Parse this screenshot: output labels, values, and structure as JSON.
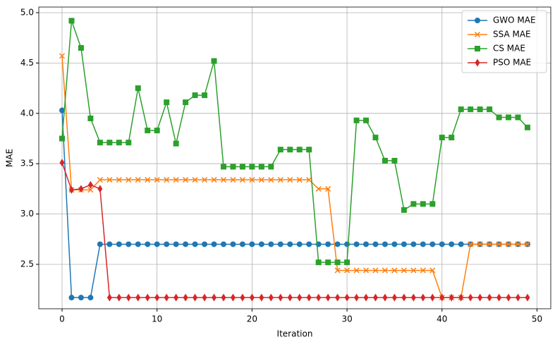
{
  "chart_data": {
    "type": "line",
    "x_label": "Iteration",
    "y_label": "MAE",
    "x": [
      0,
      1,
      2,
      3,
      4,
      5,
      6,
      7,
      8,
      9,
      10,
      11,
      12,
      13,
      14,
      15,
      16,
      17,
      18,
      19,
      20,
      21,
      22,
      23,
      24,
      25,
      26,
      27,
      28,
      29,
      30,
      31,
      32,
      33,
      34,
      35,
      36,
      37,
      38,
      39,
      40,
      41,
      42,
      43,
      44,
      45,
      46,
      47,
      48,
      49
    ],
    "series": [
      {
        "name": "GWO MAE",
        "color": "#1f77b4",
        "marker": "circle",
        "values": [
          4.03,
          2.17,
          2.17,
          2.17,
          2.7,
          2.7,
          2.7,
          2.7,
          2.7,
          2.7,
          2.7,
          2.7,
          2.7,
          2.7,
          2.7,
          2.7,
          2.7,
          2.7,
          2.7,
          2.7,
          2.7,
          2.7,
          2.7,
          2.7,
          2.7,
          2.7,
          2.7,
          2.7,
          2.7,
          2.7,
          2.7,
          2.7,
          2.7,
          2.7,
          2.7,
          2.7,
          2.7,
          2.7,
          2.7,
          2.7,
          2.7,
          2.7,
          2.7,
          2.7,
          2.7,
          2.7,
          2.7,
          2.7,
          2.7,
          2.7
        ]
      },
      {
        "name": "SSA MAE",
        "color": "#ff7f0e",
        "marker": "x",
        "values": [
          4.57,
          3.24,
          3.24,
          3.24,
          3.34,
          3.34,
          3.34,
          3.34,
          3.34,
          3.34,
          3.34,
          3.34,
          3.34,
          3.34,
          3.34,
          3.34,
          3.34,
          3.34,
          3.34,
          3.34,
          3.34,
          3.34,
          3.34,
          3.34,
          3.34,
          3.34,
          3.34,
          3.25,
          3.25,
          2.44,
          2.44,
          2.44,
          2.44,
          2.44,
          2.44,
          2.44,
          2.44,
          2.44,
          2.44,
          2.44,
          2.17,
          2.17,
          2.17,
          2.7,
          2.7,
          2.7,
          2.7,
          2.7,
          2.7,
          2.7
        ]
      },
      {
        "name": "CS MAE",
        "color": "#2ca02c",
        "marker": "square",
        "values": [
          3.75,
          4.92,
          4.65,
          3.95,
          3.71,
          3.71,
          3.71,
          3.71,
          4.25,
          3.83,
          3.83,
          4.11,
          3.7,
          4.11,
          4.18,
          4.18,
          4.52,
          3.47,
          3.47,
          3.47,
          3.47,
          3.47,
          3.47,
          3.64,
          3.64,
          3.64,
          3.64,
          2.52,
          2.52,
          2.52,
          2.52,
          3.93,
          3.93,
          3.76,
          3.53,
          3.53,
          3.04,
          3.1,
          3.1,
          3.1,
          3.76,
          3.76,
          4.04,
          4.04,
          4.04,
          4.04,
          3.96,
          3.96,
          3.96,
          3.86
        ]
      },
      {
        "name": "PSO MAE",
        "color": "#d62728",
        "marker": "diamond",
        "values": [
          3.51,
          3.24,
          3.25,
          3.29,
          3.25,
          2.17,
          2.17,
          2.17,
          2.17,
          2.17,
          2.17,
          2.17,
          2.17,
          2.17,
          2.17,
          2.17,
          2.17,
          2.17,
          2.17,
          2.17,
          2.17,
          2.17,
          2.17,
          2.17,
          2.17,
          2.17,
          2.17,
          2.17,
          2.17,
          2.17,
          2.17,
          2.17,
          2.17,
          2.17,
          2.17,
          2.17,
          2.17,
          2.17,
          2.17,
          2.17,
          2.17,
          2.17,
          2.17,
          2.17,
          2.17,
          2.17,
          2.17,
          2.17,
          2.17,
          2.17
        ]
      }
    ],
    "xlim": [
      -2.45,
      51.45
    ],
    "ylim": [
      2.059,
      5.056
    ],
    "xticks": [
      0,
      10,
      20,
      30,
      40,
      50
    ],
    "yticks": [
      2.5,
      {
        "value": 3,
        "label": "3.0"
      },
      3.5,
      {
        "value": 4,
        "label": "4.0"
      },
      4.5,
      {
        "value": 5,
        "label": "5.0"
      }
    ],
    "grid": true,
    "legend": "upper right"
  }
}
